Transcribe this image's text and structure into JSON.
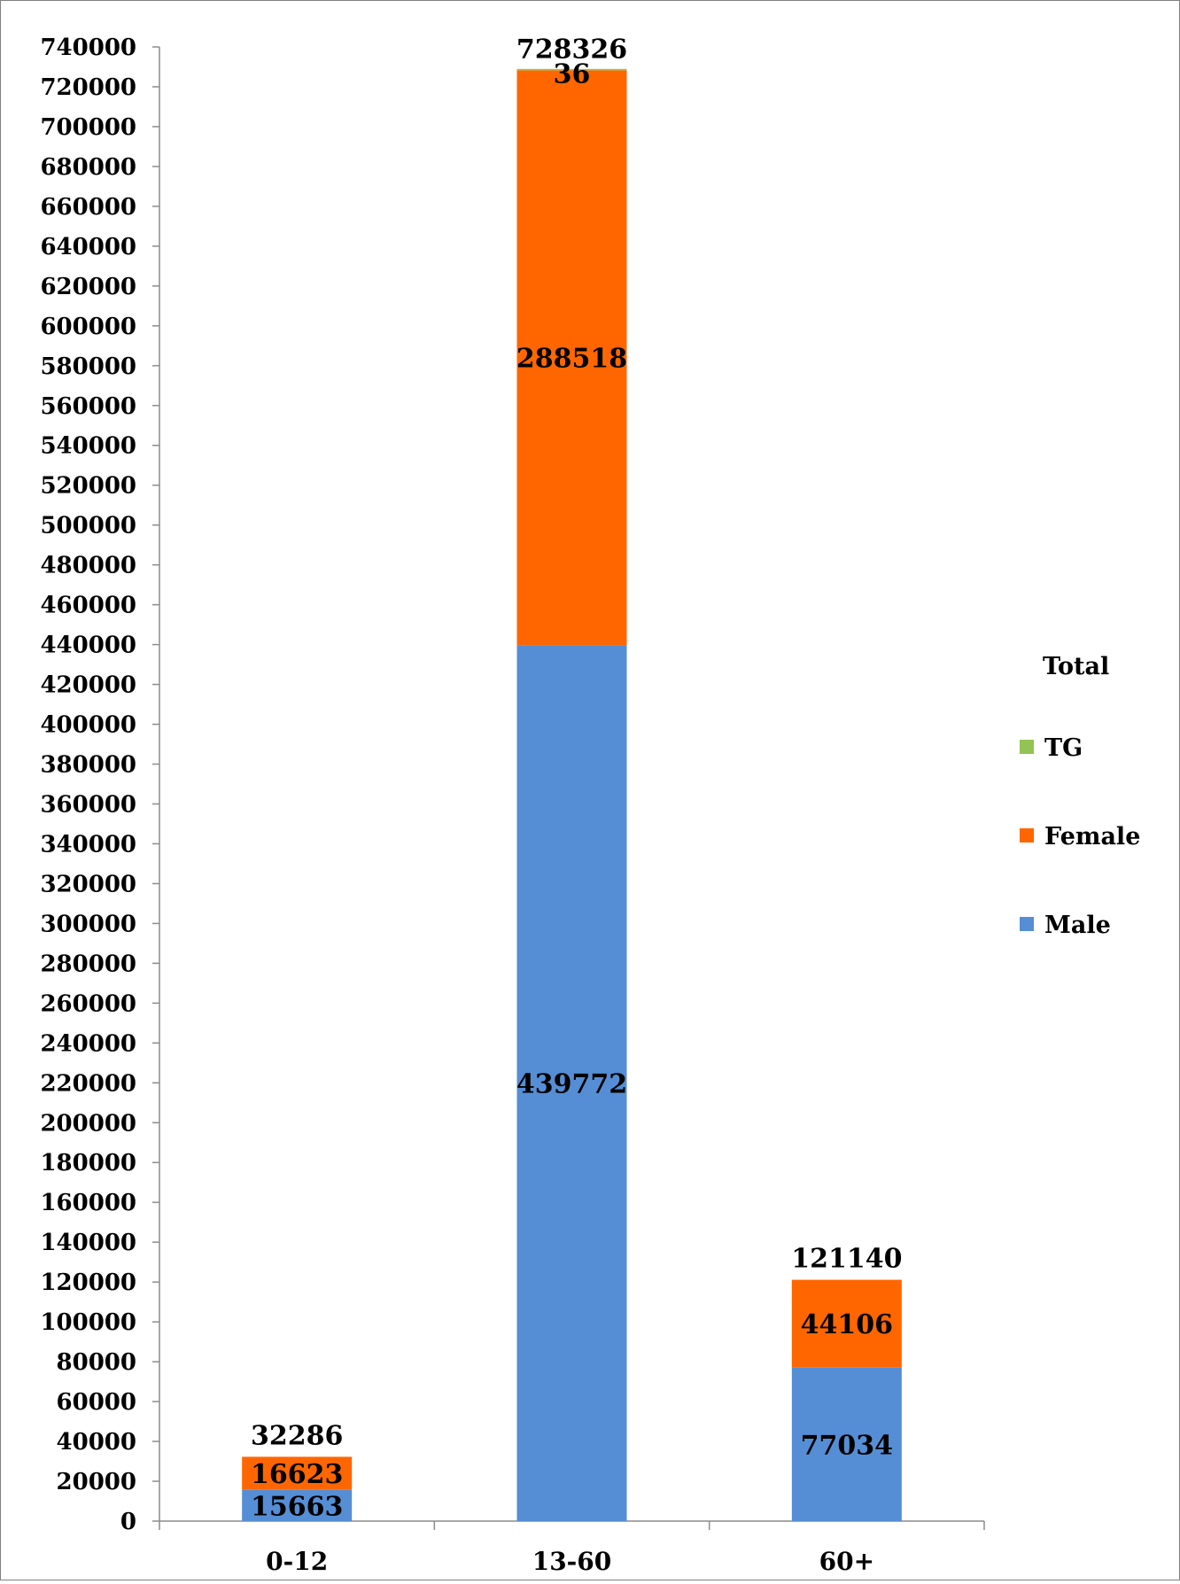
{
  "chart_data": {
    "type": "bar",
    "stacked": true,
    "categories": [
      "0-12",
      "13-60",
      "60+"
    ],
    "series": [
      {
        "name": "Male",
        "color": "#558ED5",
        "values": [
          15663,
          439772,
          77034
        ]
      },
      {
        "name": "Female",
        "color": "#FF6600",
        "values": [
          16623,
          288518,
          44106
        ]
      },
      {
        "name": "TG",
        "color": "#92C353",
        "values": [
          0,
          36,
          0
        ]
      }
    ],
    "totals": [
      32286,
      728326,
      121140
    ],
    "segment_labels": [
      [
        "15663",
        "439772",
        "77034"
      ],
      [
        "16623",
        "288518",
        "44106"
      ],
      [
        "",
        "36",
        ""
      ]
    ],
    "total_labels": [
      "32286",
      "728326",
      "121140"
    ],
    "legend": {
      "title": "Total",
      "entries": [
        "TG",
        "Female",
        "Male"
      ],
      "placement": "right"
    },
    "ylim": [
      0,
      740000
    ],
    "ytick_step": 20000,
    "yticks": [
      "0",
      "20000",
      "40000",
      "60000",
      "80000",
      "100000",
      "120000",
      "140000",
      "160000",
      "180000",
      "200000",
      "220000",
      "240000",
      "260000",
      "280000",
      "300000",
      "320000",
      "340000",
      "360000",
      "380000",
      "400000",
      "420000",
      "440000",
      "460000",
      "480000",
      "500000",
      "520000",
      "540000",
      "560000",
      "580000",
      "600000",
      "620000",
      "640000",
      "660000",
      "680000",
      "700000",
      "720000",
      "740000"
    ],
    "grid": false
  }
}
